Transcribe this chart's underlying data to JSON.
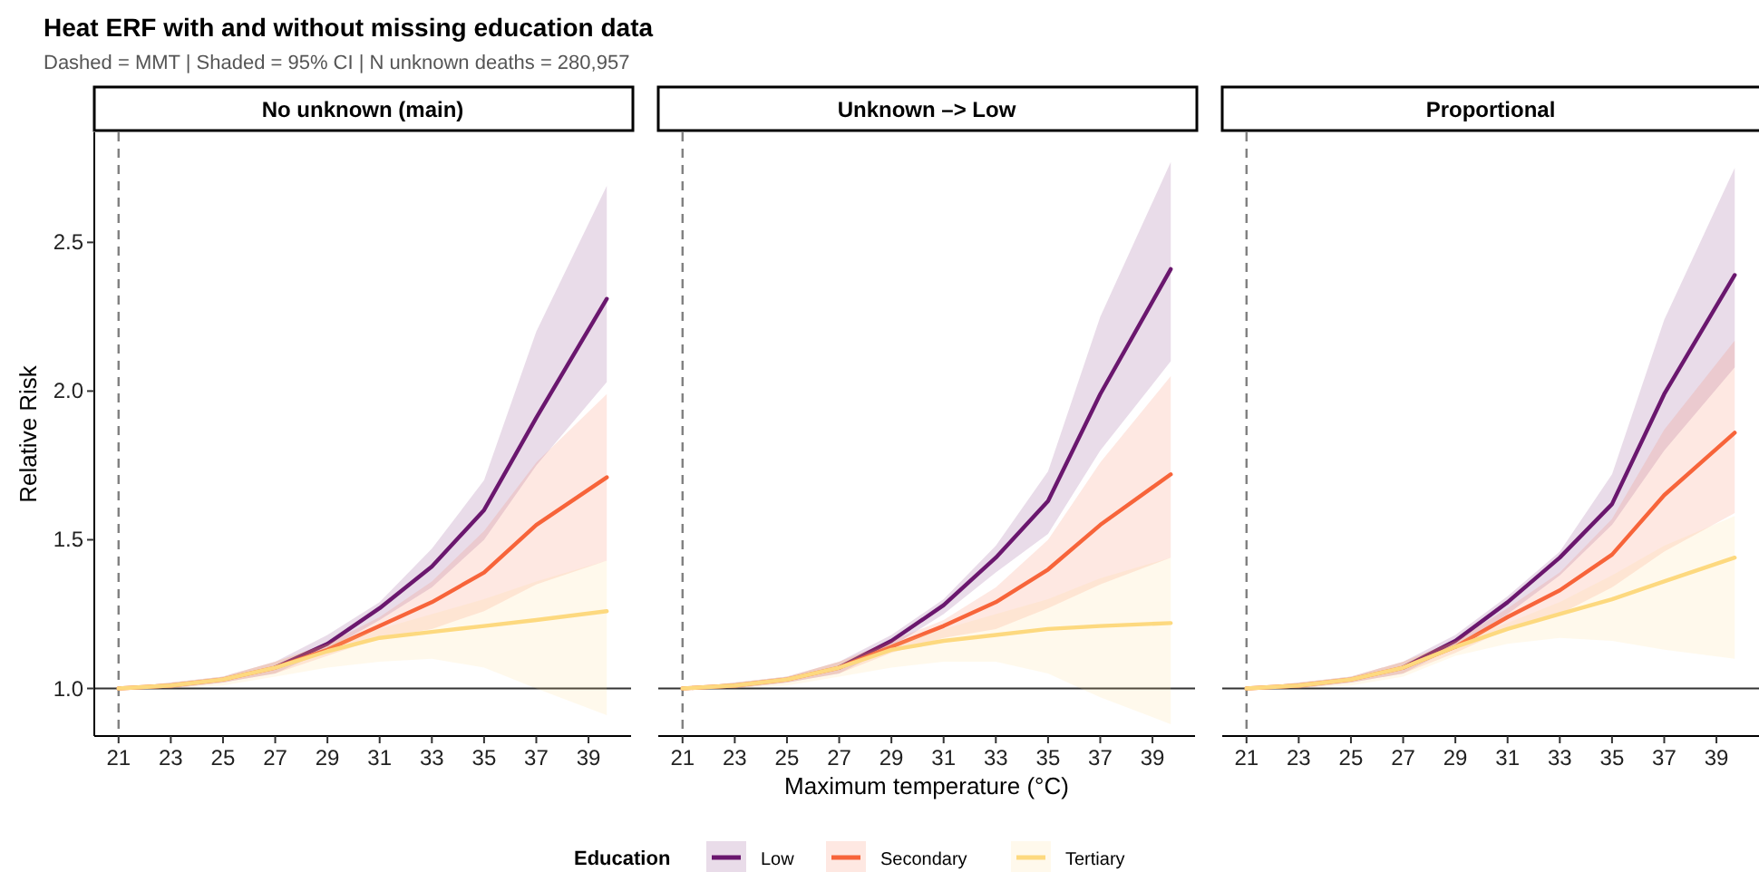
{
  "chart_data": [
    {
      "type": "line",
      "title": "No unknown (main)",
      "annotations": [
        "Heat ERF with and without missing education data",
        "Dashed = MMT | Shaded = 95% CI | N unknown deaths = 280,957"
      ],
      "ylabel": "Relative Risk",
      "xlim": [
        20.07,
        40.63
      ],
      "xticks": [
        21,
        23,
        25,
        27,
        29,
        31,
        33,
        35,
        37,
        39
      ],
      "ylim": [
        0.84,
        2.87
      ],
      "yticks": [
        {
          "value": 1,
          "label": "1.0"
        },
        1.5,
        {
          "value": 2,
          "label": "2.0"
        },
        2.5
      ],
      "tick_labels": "xy",
      "line_style": "solid",
      "ref_lines": [
        {
          "axis": "x",
          "value": 21,
          "line_style": "dashed",
          "color": "#808080"
        },
        {
          "axis": "y",
          "value": 1,
          "color": "#333333"
        }
      ],
      "series": [
        {
          "color": "#6a176e",
          "x": [
            21,
            23,
            25,
            27,
            29,
            31,
            33,
            35,
            37,
            39.7
          ],
          "values": [
            null,
            null,
            null,
            1.07,
            1.15,
            1.27,
            1.41,
            1.6,
            1.91,
            2.31
          ],
          "lower": [
            1.0,
            1.0,
            1.02,
            1.05,
            1.13,
            1.23,
            1.34,
            1.5,
            1.75,
            2.03
          ],
          "upper": [
            1.0,
            1.02,
            1.04,
            1.09,
            1.18,
            1.29,
            1.47,
            1.7,
            2.2,
            2.69
          ]
        },
        {
          "color": "#f7643a",
          "x": [
            21,
            23,
            25,
            27,
            29,
            31,
            33,
            35,
            37,
            39.7
          ],
          "values": [
            1.0,
            1.01,
            1.03,
            1.07,
            1.13,
            1.21,
            1.29,
            1.39,
            1.55,
            1.71
          ],
          "lower": [
            1.0,
            1.0,
            1.02,
            1.05,
            1.11,
            1.17,
            1.2,
            1.26,
            1.35,
            1.43
          ],
          "upper": [
            1.0,
            1.02,
            1.04,
            1.09,
            1.15,
            1.24,
            1.36,
            1.53,
            1.76,
            1.99
          ]
        },
        {
          "color": "#fdd97f",
          "x": [
            21,
            23,
            25,
            27,
            29,
            31,
            33,
            35,
            37,
            39.7
          ],
          "values": [
            1.0,
            1.01,
            1.03,
            1.07,
            1.125,
            1.17,
            1.19,
            1.21,
            1.23,
            1.26
          ],
          "lower": [
            1.0,
            1.0,
            1.01,
            1.04,
            1.07,
            1.09,
            1.1,
            1.07,
            1.0,
            0.91
          ],
          "upper": [
            1.0,
            1.02,
            1.04,
            1.09,
            1.15,
            1.2,
            1.25,
            1.3,
            1.36,
            1.43
          ]
        }
      ]
    },
    {
      "type": "line",
      "title": "Unknown –> Low",
      "xlabel": "Maximum temperature (°C)",
      "legend_title": "Education",
      "legend": "bottom",
      "xlim": [
        20.07,
        40.63
      ],
      "xticks": [
        21,
        23,
        25,
        27,
        29,
        31,
        33,
        35,
        37,
        39
      ],
      "ylim": [
        0.84,
        2.87
      ],
      "tick_labels": "x",
      "line_style": "solid",
      "ref_lines": [
        {
          "axis": "x",
          "value": 21,
          "line_style": "dashed",
          "color": "#808080"
        },
        {
          "axis": "y",
          "value": 1,
          "color": "#333333"
        }
      ],
      "series": [
        {
          "name": "Low",
          "color": "#6a176e",
          "x": [
            21,
            23,
            25,
            27,
            29,
            31,
            33,
            35,
            37,
            39.7
          ],
          "values": [
            null,
            null,
            null,
            1.07,
            1.16,
            1.28,
            1.44,
            1.63,
            1.99,
            2.41
          ],
          "lower": [
            1.0,
            1.0,
            1.02,
            1.05,
            1.14,
            1.25,
            1.39,
            1.52,
            1.8,
            2.1
          ],
          "upper": [
            1.0,
            1.02,
            1.04,
            1.09,
            1.18,
            1.3,
            1.48,
            1.73,
            2.25,
            2.77
          ]
        },
        {
          "name": "Secondary",
          "color": "#f7643a",
          "x": [
            21,
            23,
            25,
            27,
            29,
            31,
            33,
            35,
            37,
            39.7
          ],
          "values": [
            1.0,
            1.01,
            1.03,
            1.07,
            1.14,
            1.21,
            1.29,
            1.4,
            1.55,
            1.72
          ],
          "lower": [
            1.0,
            1.0,
            1.02,
            1.05,
            1.12,
            1.17,
            1.2,
            1.27,
            1.35,
            1.44
          ],
          "upper": [
            1.0,
            1.02,
            1.04,
            1.09,
            1.16,
            1.23,
            1.34,
            1.5,
            1.76,
            2.05
          ]
        },
        {
          "name": "Tertiary",
          "color": "#fdd97f",
          "x": [
            21,
            23,
            25,
            27,
            29,
            31,
            33,
            35,
            37,
            39.7
          ],
          "values": [
            1.0,
            1.01,
            1.03,
            1.07,
            1.13,
            1.16,
            1.18,
            1.2,
            1.21,
            1.22
          ],
          "lower": [
            1.0,
            1.0,
            1.01,
            1.04,
            1.07,
            1.09,
            1.09,
            1.05,
            0.97,
            0.88
          ],
          "upper": [
            1.0,
            1.02,
            1.04,
            1.09,
            1.15,
            1.2,
            1.25,
            1.3,
            1.37,
            1.44
          ]
        }
      ]
    },
    {
      "type": "line",
      "title": "Proportional",
      "xlim": [
        20.07,
        40.63
      ],
      "xticks": [
        21,
        23,
        25,
        27,
        29,
        31,
        33,
        35,
        37,
        39
      ],
      "ylim": [
        0.84,
        2.87
      ],
      "tick_labels": "x",
      "line_style": "solid",
      "ref_lines": [
        {
          "axis": "x",
          "value": 21,
          "line_style": "dashed",
          "color": "#808080"
        },
        {
          "axis": "y",
          "value": 1,
          "color": "#333333"
        }
      ],
      "series": [
        {
          "color": "#6a176e",
          "x": [
            21,
            23,
            25,
            27,
            29,
            31,
            33,
            35,
            37,
            39.7
          ],
          "values": [
            null,
            null,
            null,
            1.07,
            1.16,
            1.29,
            1.44,
            1.62,
            1.99,
            2.39
          ],
          "lower": [
            1.0,
            1.0,
            1.02,
            1.05,
            1.14,
            1.25,
            1.38,
            1.55,
            1.8,
            2.08
          ],
          "upper": [
            1.0,
            1.02,
            1.04,
            1.09,
            1.18,
            1.31,
            1.46,
            1.72,
            2.24,
            2.75
          ]
        },
        {
          "color": "#f7643a",
          "x": [
            21,
            23,
            25,
            27,
            29,
            31,
            33,
            35,
            37,
            39.7
          ],
          "values": [
            1.0,
            1.01,
            1.03,
            1.07,
            1.14,
            1.24,
            1.33,
            1.45,
            1.65,
            1.86
          ],
          "lower": [
            1.0,
            1.0,
            1.02,
            1.05,
            1.12,
            1.2,
            1.25,
            1.34,
            1.46,
            1.59
          ],
          "upper": [
            1.0,
            1.02,
            1.04,
            1.09,
            1.16,
            1.27,
            1.39,
            1.57,
            1.87,
            2.17
          ]
        },
        {
          "color": "#fdd97f",
          "x": [
            21,
            23,
            25,
            27,
            29,
            31,
            33,
            35,
            37,
            39.7
          ],
          "values": [
            1.0,
            1.01,
            1.03,
            1.07,
            1.14,
            1.2,
            1.25,
            1.3,
            1.36,
            1.44
          ],
          "lower": [
            1.0,
            1.0,
            1.01,
            1.04,
            1.11,
            1.15,
            1.17,
            1.16,
            1.13,
            1.1
          ],
          "upper": [
            1.0,
            1.02,
            1.04,
            1.09,
            1.16,
            1.22,
            1.29,
            1.38,
            1.48,
            1.58
          ]
        }
      ]
    }
  ]
}
